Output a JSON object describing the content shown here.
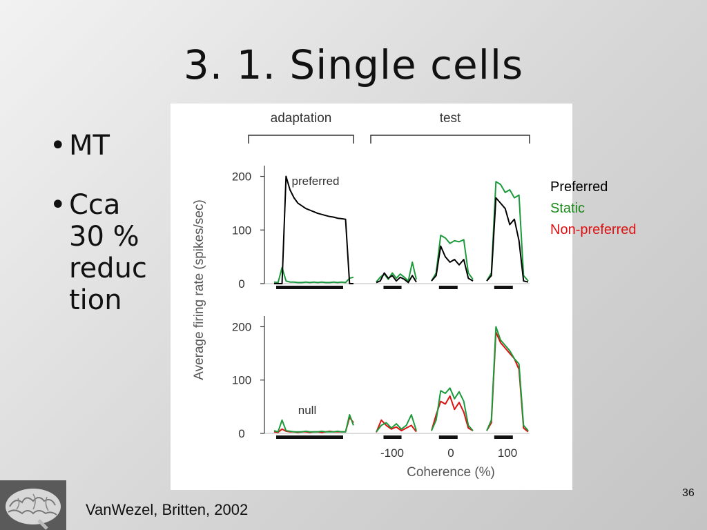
{
  "slide": {
    "title": "3. 1. Single cells",
    "bullets": [
      {
        "marker": "•",
        "lines": [
          "MT"
        ]
      },
      {
        "marker": "•",
        "lines": [
          "Cca",
          "30 %",
          "reduc",
          "tion"
        ]
      }
    ],
    "legend": [
      {
        "label": "Preferred",
        "color": "#000000"
      },
      {
        "label": "Static",
        "color": "#1a8a1a"
      },
      {
        "label": "Non-preferred",
        "color": "#dd1111"
      }
    ],
    "citation": "VanWezel, Britten, 2002",
    "page_number": "36",
    "logo_icon": "brain-icon"
  },
  "chart_data": {
    "type": "line",
    "ylabel": "Average firing rate (spikes/sec)",
    "xlabel": "Coherence (%)",
    "brackets": [
      "adaptation",
      "test"
    ],
    "x_ticks": [
      "-100",
      "0",
      "100"
    ],
    "y_ticks": [
      "0",
      "100",
      "200"
    ],
    "ylim": [
      0,
      220
    ],
    "colors": {
      "preferred": "#000000",
      "static": "#1a9a3a",
      "nonpreferred": "#dd1111"
    },
    "panels": [
      {
        "label": "preferred",
        "adaptation": {
          "preferred": [
            0,
            0,
            0,
            200,
            175,
            160,
            150,
            145,
            140,
            137,
            134,
            131,
            129,
            127,
            125,
            124,
            122,
            121,
            120,
            0,
            0
          ],
          "static": [
            3,
            2,
            30,
            5,
            3,
            3,
            2,
            2,
            3,
            2,
            3,
            2,
            3,
            2,
            2,
            3,
            2,
            3,
            2,
            10,
            12
          ]
        },
        "test": {
          "-100": {
            "preferred": [
              2,
              5,
              20,
              10,
              15,
              5,
              12,
              8,
              2,
              15,
              3
            ],
            "static": [
              3,
              12,
              18,
              8,
              20,
              10,
              18,
              12,
              5,
              40,
              8
            ]
          },
          "0": {
            "preferred": [
              5,
              15,
              70,
              50,
              40,
              45,
              35,
              45,
              10,
              5
            ],
            "static": [
              5,
              20,
              90,
              85,
              75,
              80,
              78,
              82,
              20,
              8
            ]
          },
          "100": {
            "preferred": [
              5,
              15,
              160,
              150,
              140,
              110,
              120,
              80,
              5,
              3
            ],
            "static": [
              5,
              20,
              190,
              185,
              170,
              175,
              160,
              165,
              15,
              5
            ]
          }
        }
      },
      {
        "label": "null",
        "adaptation": {
          "nonpreferred": [
            3,
            2,
            8,
            4,
            3,
            3,
            2,
            3,
            3,
            2,
            3,
            3,
            2,
            3,
            4,
            3,
            3,
            3,
            3,
            30,
            20
          ],
          "static": [
            5,
            3,
            25,
            5,
            4,
            3,
            3,
            3,
            4,
            3,
            3,
            3,
            4,
            3,
            3,
            3,
            4,
            3,
            3,
            35,
            15
          ]
        },
        "test": {
          "-100": {
            "nonpreferred": [
              2,
              25,
              15,
              8,
              12,
              5,
              10,
              15,
              3
            ],
            "static": [
              3,
              15,
              20,
              10,
              18,
              8,
              15,
              35,
              5
            ]
          },
          "0": {
            "nonpreferred": [
              5,
              35,
              60,
              55,
              70,
              45,
              58,
              40,
              10,
              5
            ],
            "static": [
              5,
              25,
              80,
              75,
              85,
              65,
              78,
              60,
              15,
              5
            ]
          },
          "100": {
            "nonpreferred": [
              5,
              20,
              190,
              170,
              160,
              150,
              140,
              120,
              10,
              3
            ],
            "static": [
              5,
              25,
              200,
              175,
              165,
              155,
              140,
              130,
              15,
              5
            ]
          }
        }
      }
    ]
  }
}
